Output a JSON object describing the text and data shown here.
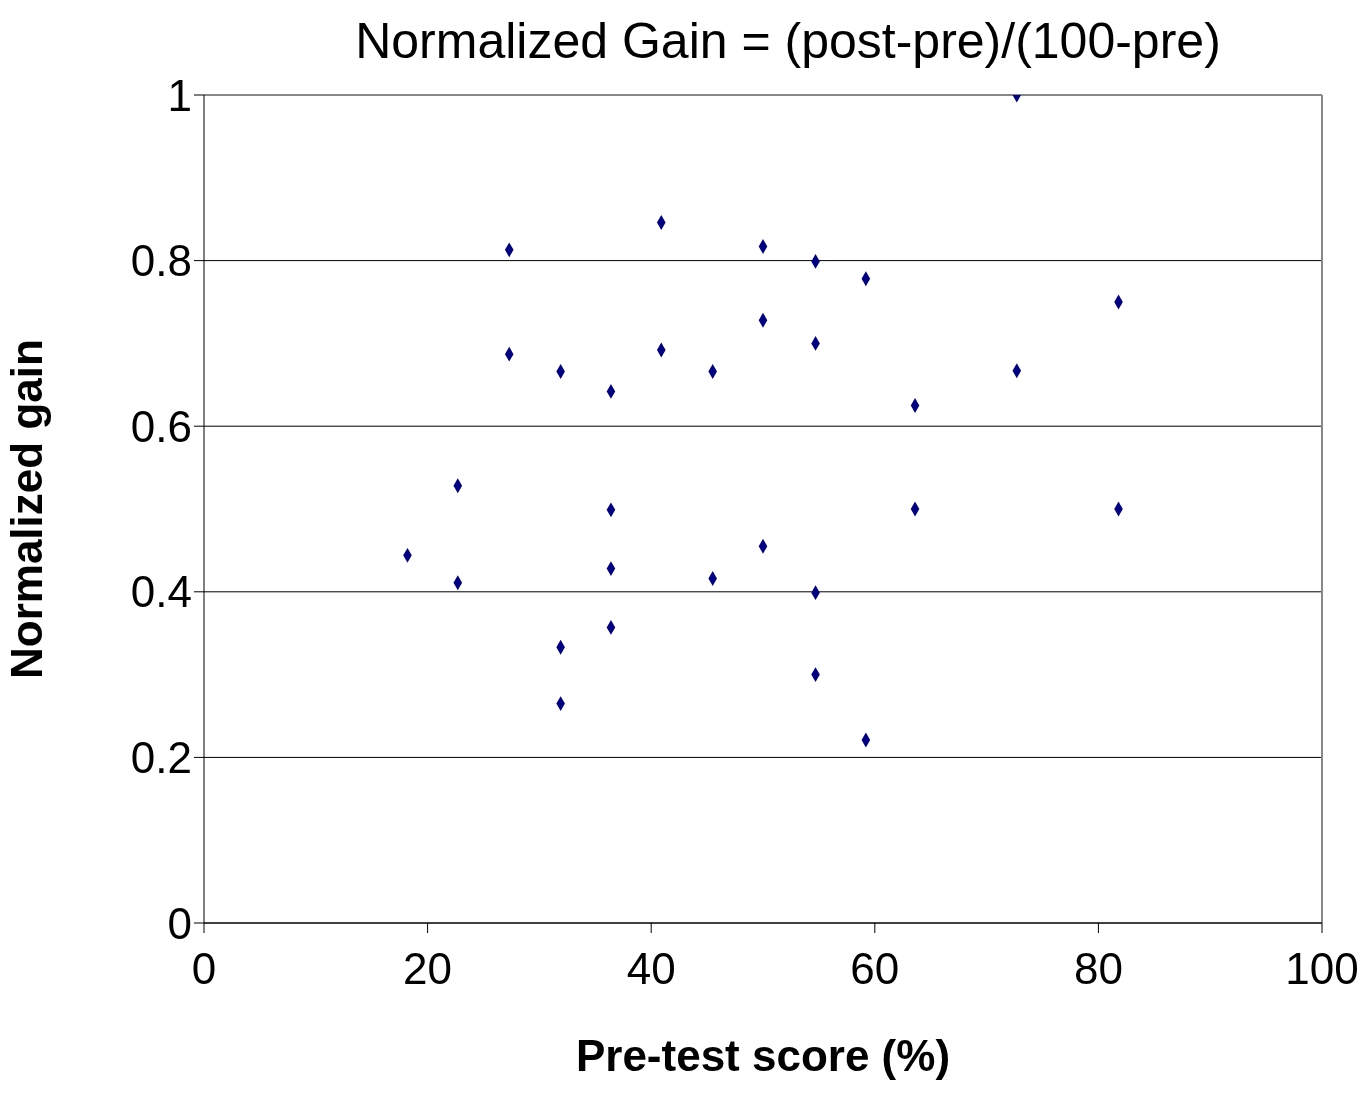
{
  "chart_data": {
    "type": "scatter",
    "title": "Normalized Gain = (post-pre)/(100-pre)",
    "xlabel": "Pre-test score (%)",
    "ylabel": "Normalized gain",
    "x": [
      18.2,
      22.7,
      22.7,
      27.3,
      27.3,
      31.9,
      31.9,
      31.9,
      36.4,
      36.4,
      36.4,
      36.4,
      40.9,
      40.9,
      45.5,
      45.5,
      50,
      50,
      50,
      54.7,
      54.7,
      54.7,
      54.7,
      59.2,
      59.2,
      63.6,
      63.6,
      72.7,
      72.7,
      81.8,
      81.8
    ],
    "values": [
      0.444,
      0.528,
      0.411,
      0.813,
      0.687,
      0.666,
      0.333,
      0.265,
      0.642,
      0.499,
      0.428,
      0.357,
      0.846,
      0.692,
      0.666,
      0.416,
      0.817,
      0.728,
      0.455,
      0.799,
      0.7,
      0.399,
      0.3,
      0.778,
      0.221,
      0.625,
      0.5,
      1.0,
      0.667,
      0.75,
      0.5
    ],
    "color": "#000080",
    "marker": "diamond",
    "xlim": [
      0,
      100
    ],
    "xticks": [
      0,
      20,
      40,
      60,
      80,
      100
    ],
    "ylim": [
      0,
      1
    ],
    "yticks": [
      0,
      0.2,
      0.4,
      0.6,
      0.8,
      1
    ],
    "grid": "y"
  }
}
